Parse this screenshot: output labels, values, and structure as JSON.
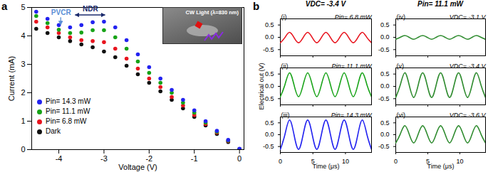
{
  "figure": {
    "panel_labels": [
      "a",
      "b"
    ],
    "column_titles": [
      "VDC= -3.4 V",
      "Pin= 11.1 mW"
    ]
  },
  "chart_data": [
    {
      "type": "scatter",
      "marker": "circle",
      "x_label": "Voltage (V)",
      "y_label": "Current (mA)",
      "legend": "lower left",
      "inset_label": "CW Light (λ=830 nm)",
      "annotations": [
        {
          "text": "PVCR",
          "x": -3.95,
          "y": 4.82
        },
        {
          "text": "NDR",
          "x": -3.3,
          "y": 4.95
        }
      ],
      "xlim": [
        -4.6,
        0.1
      ],
      "xticks": [
        -4,
        -3,
        -2,
        -1,
        0
      ],
      "ylim": [
        0,
        5
      ],
      "yticks": [
        0,
        1,
        2,
        3,
        4,
        5
      ],
      "x": [
        -4.5,
        -4.25,
        -4.0,
        -3.75,
        -3.5,
        -3.25,
        -3.0,
        -2.75,
        -2.5,
        -2.25,
        -2.0,
        -1.75,
        -1.5,
        -1.25,
        -1.0,
        -0.75,
        -0.5,
        -0.25,
        0
      ],
      "series": [
        {
          "name": "Pin= 14.3 mW",
          "color": "#2323f0",
          "values": [
            4.85,
            4.6,
            4.38,
            4.3,
            4.38,
            4.48,
            4.5,
            4.3,
            3.85,
            3.35,
            2.9,
            2.5,
            2.1,
            1.75,
            1.38,
            1.0,
            0.66,
            0.34,
            0.03
          ]
        },
        {
          "name": "Pin= 11.1 mW",
          "color": "#17a317",
          "values": [
            4.7,
            4.45,
            4.22,
            4.1,
            4.12,
            4.2,
            4.2,
            3.95,
            3.55,
            3.1,
            2.7,
            2.35,
            2.0,
            1.65,
            1.3,
            0.95,
            0.63,
            0.32,
            0.02
          ]
        },
        {
          "name": "Pin= 6.8 mW",
          "color": "#e8141e",
          "values": [
            4.5,
            4.3,
            4.1,
            3.95,
            3.85,
            3.82,
            3.78,
            3.55,
            3.2,
            2.85,
            2.5,
            2.2,
            1.85,
            1.55,
            1.22,
            0.9,
            0.6,
            0.3,
            0.02
          ]
        },
        {
          "name": "Dark",
          "color": "#111111",
          "values": [
            4.25,
            4.1,
            3.95,
            3.82,
            3.7,
            3.6,
            3.45,
            3.25,
            2.95,
            2.65,
            2.35,
            2.05,
            1.75,
            1.45,
            1.15,
            0.85,
            0.55,
            0.27,
            0.0
          ]
        }
      ]
    },
    {
      "type": "line",
      "line_style": "solid",
      "title": "(i)",
      "annotations": [
        {
          "text": "Pin= 6.8 mW"
        }
      ],
      "tick_labels": "y",
      "xlim": [
        0,
        14
      ],
      "xticks": [
        0,
        5,
        10
      ],
      "ylim": [
        -0.75,
        0.75
      ],
      "yticks": [
        -0.5,
        {
          "value": 0,
          "label": "0.0"
        },
        0.5
      ],
      "x": [
        0,
        0.7,
        1.4,
        2.1,
        2.8,
        3.5,
        4.2,
        4.9,
        5.6,
        6.3,
        7.0,
        7.7,
        8.4,
        9.1,
        9.8,
        10.5,
        11.2,
        11.9,
        12.6,
        13.3,
        14.0
      ],
      "series": [
        {
          "name": "Pin= 6.8 mW",
          "color": "#e8141e",
          "values": [
            -0.22,
            -0.01,
            0.2,
            -0.01,
            -0.22,
            -0.01,
            0.2,
            -0.01,
            -0.22,
            -0.01,
            0.2,
            -0.01,
            -0.22,
            -0.01,
            0.2,
            -0.01,
            -0.22,
            -0.01,
            0.2,
            -0.01,
            -0.22
          ]
        }
      ]
    },
    {
      "type": "line",
      "line_style": "solid",
      "title": "(ii)",
      "annotations": [
        {
          "text": "Pin= 11.1 mW"
        }
      ],
      "tick_labels": "y",
      "y_label": "Electrical out (V)",
      "xlim": [
        0,
        14
      ],
      "xticks": [
        0,
        5,
        10
      ],
      "ylim": [
        -0.75,
        0.75
      ],
      "yticks": [
        -0.5,
        {
          "value": 0,
          "label": "0.0"
        },
        0.5
      ],
      "x": [
        0,
        0.7,
        1.4,
        2.1,
        2.8,
        3.5,
        4.2,
        4.9,
        5.6,
        6.3,
        7.0,
        7.7,
        8.4,
        9.1,
        9.8,
        10.5,
        11.2,
        11.9,
        12.6,
        13.3,
        14.0
      ],
      "series": [
        {
          "name": "Pin= 11.1 mW",
          "color": "#17a317",
          "values": [
            -0.42,
            0.06,
            0.55,
            0.06,
            -0.42,
            0.06,
            0.55,
            0.06,
            -0.42,
            0.06,
            0.55,
            0.06,
            -0.42,
            0.06,
            0.55,
            0.06,
            -0.42,
            0.06,
            0.55,
            0.06,
            -0.42
          ]
        }
      ]
    },
    {
      "type": "line",
      "line_style": "solid",
      "title": "(iii)",
      "annotations": [
        {
          "text": "Pin= 14.3 mW"
        }
      ],
      "x_label": "Time (μs)",
      "xlim": [
        0,
        14
      ],
      "xticks": [
        0,
        5,
        10
      ],
      "ylim": [
        -0.75,
        0.75
      ],
      "yticks": [
        -0.5,
        {
          "value": 0,
          "label": "0.0"
        },
        0.5
      ],
      "x": [
        0,
        0.7,
        1.4,
        2.1,
        2.8,
        3.5,
        4.2,
        4.9,
        5.6,
        6.3,
        7.0,
        7.7,
        8.4,
        9.1,
        9.8,
        10.5,
        11.2,
        11.9,
        12.6,
        13.3,
        14.0
      ],
      "series": [
        {
          "name": "Pin= 14.3 mW",
          "color": "#2323f0",
          "values": [
            -0.62,
            0,
            0.62,
            0,
            -0.62,
            0,
            0.62,
            0,
            -0.62,
            0,
            0.62,
            0,
            -0.62,
            0,
            0.62,
            0,
            -0.62,
            0,
            0.62,
            0,
            -0.62
          ]
        }
      ]
    },
    {
      "type": "line",
      "line_style": "solid",
      "title": "(iv)",
      "annotations": [
        {
          "text": "VDC= -3.1 V"
        }
      ],
      "tick_labels": "y",
      "xlim": [
        0,
        14
      ],
      "xticks": [
        0,
        5,
        10
      ],
      "ylim": [
        -0.75,
        0.75
      ],
      "yticks": [
        -0.5,
        {
          "value": 0,
          "label": "0.0"
        },
        0.5
      ],
      "x": [
        0,
        0.7,
        1.4,
        2.1,
        2.8,
        3.5,
        4.2,
        4.9,
        5.6,
        6.3,
        7.0,
        7.7,
        8.4,
        9.1,
        9.8,
        10.5,
        11.2,
        11.9,
        12.6,
        13.3,
        14.0
      ],
      "series": [
        {
          "name": "VDC= -3.1 V",
          "color": "#2e8b2e",
          "values": [
            -0.08,
            0,
            0.07,
            0,
            -0.08,
            0,
            0.07,
            0,
            -0.08,
            0,
            0.07,
            0,
            -0.08,
            0,
            0.07,
            0,
            -0.08,
            0,
            0.07,
            0,
            -0.08
          ]
        }
      ]
    },
    {
      "type": "line",
      "line_style": "solid",
      "title": "(v)",
      "annotations": [
        {
          "text": "VDC= -3.4 V"
        }
      ],
      "tick_labels": "y",
      "xlim": [
        0,
        14
      ],
      "xticks": [
        0,
        5,
        10
      ],
      "ylim": [
        -0.75,
        0.75
      ],
      "yticks": [
        -0.5,
        {
          "value": 0,
          "label": "0.0"
        },
        0.5
      ],
      "x": [
        0,
        0.7,
        1.4,
        2.1,
        2.8,
        3.5,
        4.2,
        4.9,
        5.6,
        6.3,
        7.0,
        7.7,
        8.4,
        9.1,
        9.8,
        10.5,
        11.2,
        11.9,
        12.6,
        13.3,
        14.0
      ],
      "series": [
        {
          "name": "VDC= -3.4 V",
          "color": "#2e8b2e",
          "values": [
            -0.45,
            0.05,
            0.55,
            0.05,
            -0.45,
            0.05,
            0.55,
            0.05,
            -0.45,
            0.05,
            0.55,
            0.05,
            -0.45,
            0.05,
            0.55,
            0.05,
            -0.45,
            0.05,
            0.55,
            0.05,
            -0.45
          ]
        }
      ]
    },
    {
      "type": "line",
      "line_style": "solid",
      "title": "(vi)",
      "annotations": [
        {
          "text": "VDC= -3.6 V"
        }
      ],
      "x_label": "Time (μs)",
      "xlim": [
        0,
        14
      ],
      "xticks": [
        0,
        5,
        10
      ],
      "ylim": [
        -0.75,
        0.75
      ],
      "yticks": [
        -0.5,
        {
          "value": 0,
          "label": "0.0"
        },
        0.5
      ],
      "x": [
        0,
        0.7,
        1.4,
        2.1,
        2.8,
        3.5,
        4.2,
        4.9,
        5.6,
        6.3,
        7.0,
        7.7,
        8.4,
        9.1,
        9.8,
        10.5,
        11.2,
        11.9,
        12.6,
        13.3,
        14.0
      ],
      "series": [
        {
          "name": "VDC= -3.6 V",
          "color": "#2e8b2e",
          "values": [
            -0.35,
            0.02,
            0.38,
            0.02,
            -0.35,
            0.02,
            0.38,
            0.02,
            -0.35,
            0.02,
            0.38,
            0.02,
            -0.35,
            0.02,
            0.38,
            0.02,
            -0.35,
            0.02,
            0.38,
            0.02,
            -0.35
          ]
        }
      ]
    }
  ]
}
